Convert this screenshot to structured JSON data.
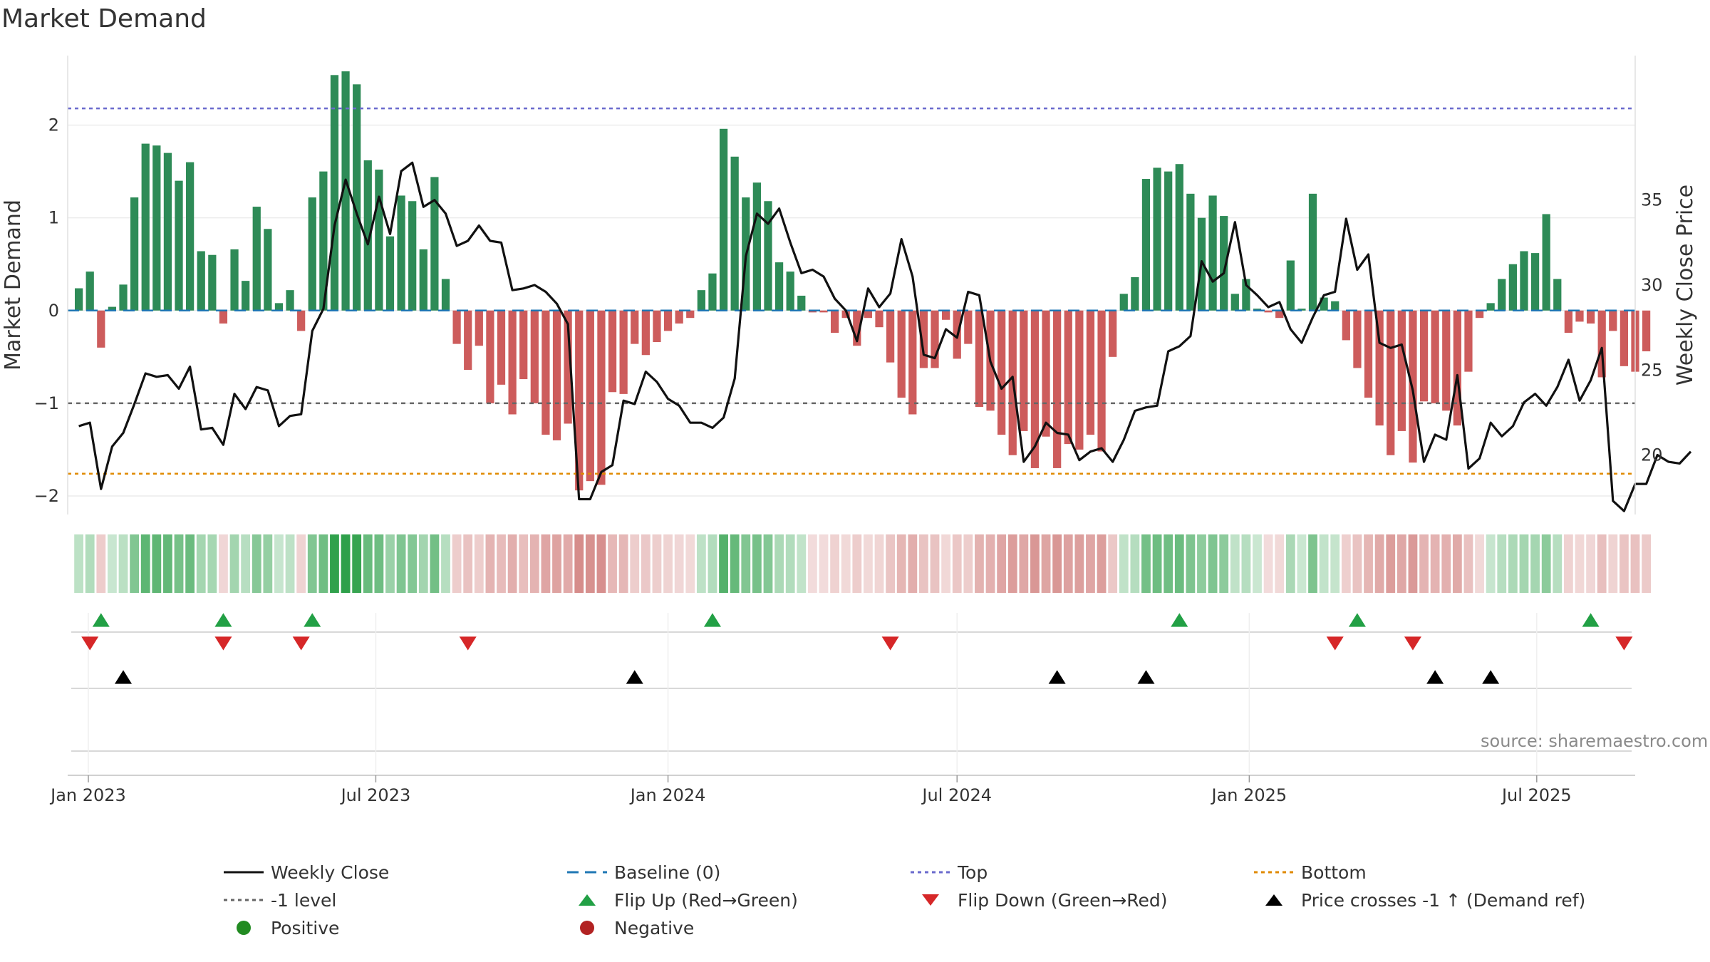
{
  "title": "Market Demand",
  "source": "source: sharemaestro.com",
  "chart_data": {
    "type": "bar+line",
    "title": "Market Demand",
    "ylabel_left": "Market Demand",
    "ylabel_right": "Weekly Close Price",
    "ylim_left": [
      -2.2,
      2.75
    ],
    "ylim_right": [
      16.5,
      43.5
    ],
    "left_ticks": [
      -2,
      -1,
      0,
      1,
      2
    ],
    "right_ticks": [
      20,
      25,
      30,
      35
    ],
    "x_start": "2022-12-19",
    "x_end": "2025-09-01",
    "x_ticks": [
      {
        "label": "Jan 2023",
        "date": "2023-01-01"
      },
      {
        "label": "Jul 2023",
        "date": "2023-07-01"
      },
      {
        "label": "Jan 2024",
        "date": "2024-01-01"
      },
      {
        "label": "Jul 2024",
        "date": "2024-07-01"
      },
      {
        "label": "Jan 2025",
        "date": "2025-01-01"
      },
      {
        "label": "Jul 2025",
        "date": "2025-07-01"
      }
    ],
    "first_week": "2022-12-26",
    "demand": [
      0.24,
      0.42,
      -0.4,
      0.04,
      0.28,
      1.22,
      1.8,
      1.78,
      1.7,
      1.4,
      1.6,
      0.64,
      0.6,
      -0.14,
      0.66,
      0.32,
      1.12,
      0.88,
      0.08,
      0.22,
      -0.22,
      1.22,
      1.5,
      2.54,
      2.58,
      2.44,
      1.62,
      1.52,
      0.8,
      1.24,
      1.18,
      0.66,
      1.44,
      0.34,
      -0.36,
      -0.64,
      -0.38,
      -1.0,
      -0.8,
      -1.12,
      -0.74,
      -1.0,
      -1.34,
      -1.4,
      -1.22,
      -1.94,
      -1.84,
      -1.88,
      -0.88,
      -0.9,
      -0.36,
      -0.48,
      -0.34,
      -0.22,
      -0.14,
      -0.08,
      0.22,
      0.4,
      1.96,
      1.66,
      1.22,
      1.38,
      1.18,
      0.52,
      0.42,
      0.16,
      -0.02,
      -0.02,
      -0.24,
      -0.08,
      -0.38,
      -0.08,
      -0.18,
      -0.56,
      -0.94,
      -1.12,
      -0.62,
      -0.62,
      -0.1,
      -0.52,
      -0.36,
      -1.04,
      -1.08,
      -1.34,
      -1.56,
      -1.3,
      -1.7,
      -1.36,
      -1.7,
      -1.44,
      -1.5,
      -1.34,
      -1.52,
      -0.5,
      0.18,
      0.36,
      1.42,
      1.54,
      1.5,
      1.58,
      1.26,
      1.0,
      1.24,
      1.02,
      0.18,
      0.34,
      0.02,
      -0.02,
      -0.08,
      0.54,
      0.02,
      1.26,
      0.14,
      0.1,
      -0.32,
      -0.62,
      -0.94,
      -1.24,
      -1.56,
      -1.3,
      -1.64,
      -0.98,
      -1.0,
      -1.08,
      -1.24,
      -0.66,
      -0.08,
      0.08,
      0.34,
      0.5,
      0.64,
      0.62,
      1.04,
      0.34,
      -0.24,
      -0.12,
      -0.14,
      -0.72,
      -0.22,
      -0.6,
      -0.66,
      -0.44
    ],
    "close": [
      21.7,
      21.9,
      18.0,
      20.5,
      21.3,
      23.0,
      24.8,
      24.6,
      24.7,
      23.9,
      25.2,
      21.5,
      21.6,
      20.6,
      23.6,
      22.7,
      24.0,
      23.8,
      21.7,
      22.3,
      22.4,
      27.3,
      28.6,
      33.5,
      36.2,
      34.2,
      32.4,
      35.2,
      33.0,
      36.7,
      37.2,
      34.6,
      35.0,
      34.2,
      32.3,
      32.6,
      33.5,
      32.6,
      32.5,
      29.7,
      29.8,
      30.0,
      29.6,
      28.9,
      27.7,
      17.4,
      17.4,
      19.0,
      19.4,
      23.2,
      23.0,
      24.9,
      24.3,
      23.3,
      22.9,
      21.9,
      21.9,
      21.6,
      22.2,
      24.5,
      31.7,
      34.2,
      33.6,
      34.5,
      32.5,
      30.7,
      30.9,
      30.5,
      29.2,
      28.5,
      26.7,
      29.8,
      28.7,
      29.5,
      32.7,
      30.5,
      25.9,
      25.7,
      27.4,
      26.9,
      29.6,
      29.4,
      25.5,
      23.9,
      24.6,
      19.6,
      20.5,
      21.9,
      21.3,
      21.2,
      19.7,
      20.2,
      20.4,
      19.6,
      20.9,
      22.6,
      22.8,
      22.9,
      26.1,
      26.4,
      27.0,
      31.4,
      30.2,
      30.7,
      33.7,
      30.0,
      29.4,
      28.7,
      29.0,
      27.4,
      26.6,
      28.1,
      29.4,
      29.6,
      33.9,
      30.9,
      31.8,
      26.6,
      26.3,
      26.5,
      23.8,
      19.6,
      21.2,
      20.9,
      24.7,
      19.2,
      19.8,
      21.9,
      21.1,
      21.7,
      23.1,
      23.6,
      22.9,
      24.0,
      25.6,
      23.2,
      24.4,
      26.3,
      17.3,
      16.7,
      18.3,
      18.3,
      20.0,
      19.6,
      19.5,
      20.2
    ],
    "top_level": 2.18,
    "bottom_level": -1.76,
    "minus1_level": -1.0,
    "flip_up_weeks": [
      2,
      13,
      21,
      57,
      99,
      115,
      136
    ],
    "flip_down_weeks": [
      1,
      13,
      20,
      35,
      73,
      113,
      120,
      139
    ],
    "price_cross_weeks": [
      4,
      50,
      88,
      96,
      122,
      127
    ]
  },
  "legend": {
    "items": [
      {
        "label": "Weekly Close",
        "symbol": "line-black"
      },
      {
        "label": "Baseline (0)",
        "symbol": "dash-blue"
      },
      {
        "label": "Top",
        "symbol": "dot-purple"
      },
      {
        "label": "Bottom",
        "symbol": "dot-orange"
      },
      {
        "label": "-1 level",
        "symbol": "dot-gray"
      },
      {
        "label": "Flip Up (Red→Green)",
        "symbol": "tri-up-green"
      },
      {
        "label": "Flip Down (Green→Red)",
        "symbol": "tri-down-red"
      },
      {
        "label": "Price crosses -1 ↑ (Demand ref)",
        "symbol": "tri-up-black"
      },
      {
        "label": "Positive",
        "symbol": "circle-green"
      },
      {
        "label": "Negative",
        "symbol": "circle-red"
      }
    ]
  },
  "colors": {
    "positive": "#2e8b57",
    "negative": "#cd5c5c",
    "close_line": "#111111",
    "baseline": "#1f77b4",
    "top": "#6a6acd",
    "bottom": "#e08a00",
    "minus1": "#666666",
    "flip_up": "#22a045",
    "flip_down": "#d62728",
    "price_cross": "#000000"
  }
}
